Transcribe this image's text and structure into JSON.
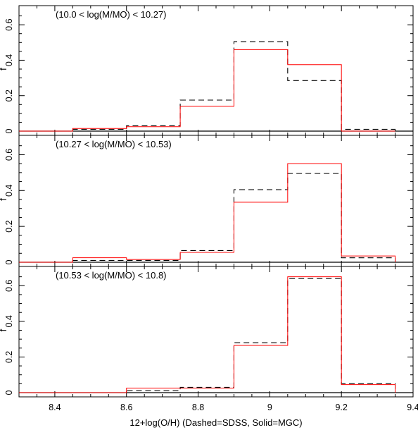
{
  "chart_data": [
    {
      "type": "histogram",
      "annotation": "(10.0 < log(M/MO) < 10.27)",
      "ylabel": "f",
      "xlim": [
        8.3,
        9.4
      ],
      "ylim": [
        0,
        0.7
      ],
      "yticks": [
        0,
        0.2,
        0.4,
        0.6
      ],
      "bin_edges": [
        8.3,
        8.45,
        8.6,
        8.75,
        8.9,
        9.05,
        9.2,
        9.35
      ],
      "series": [
        {
          "line": "dashed",
          "color": "#000000",
          "values": [
            0.0,
            0.01,
            0.03,
            0.175,
            0.505,
            0.285,
            0.01
          ]
        },
        {
          "line": "solid",
          "color": "#ff0000",
          "values": [
            0.0,
            0.015,
            0.025,
            0.14,
            0.46,
            0.375,
            0.0
          ]
        }
      ]
    },
    {
      "type": "histogram",
      "annotation": "(10.27 < log(M/MO) < 10.53)",
      "ylabel": "f",
      "xlim": [
        8.3,
        9.4
      ],
      "ylim": [
        0,
        0.7
      ],
      "yticks": [
        0,
        0.2,
        0.4,
        0.6
      ],
      "bin_edges": [
        8.3,
        8.45,
        8.6,
        8.75,
        8.9,
        9.05,
        9.2,
        9.35
      ],
      "series": [
        {
          "line": "dashed",
          "color": "#000000",
          "values": [
            0.0,
            0.01,
            0.01,
            0.065,
            0.405,
            0.495,
            0.025
          ]
        },
        {
          "line": "solid",
          "color": "#ff0000",
          "values": [
            0.0,
            0.025,
            0.015,
            0.055,
            0.335,
            0.55,
            0.035
          ]
        }
      ]
    },
    {
      "type": "histogram",
      "annotation": "(10.53 < log(M/MO) < 10.8)",
      "ylabel": "f",
      "xlim": [
        8.3,
        9.4
      ],
      "ylim": [
        0,
        0.7
      ],
      "yticks": [
        0,
        0.2,
        0.4,
        0.6
      ],
      "bin_edges": [
        8.3,
        8.45,
        8.6,
        8.75,
        8.9,
        9.05,
        9.2,
        9.35
      ],
      "series": [
        {
          "line": "dashed",
          "color": "#000000",
          "values": [
            0.0,
            0.0,
            0.01,
            0.03,
            0.28,
            0.64,
            0.05
          ]
        },
        {
          "line": "solid",
          "color": "#ff0000",
          "values": [
            0.0,
            0.0,
            0.025,
            0.025,
            0.265,
            0.65,
            0.045
          ]
        }
      ]
    }
  ],
  "x_axis": {
    "label": "12+log(O/H) (Dashed=SDSS, Solid=MGC)",
    "ticks": [
      8.4,
      8.6,
      8.8,
      9,
      9.2,
      9.4
    ],
    "tick_labels": [
      "8.4",
      "8.6",
      "8.8",
      "9",
      "9.2",
      "9.4"
    ]
  },
  "y_tick_labels": [
    "0",
    "0.2",
    "0.4",
    "0.6"
  ]
}
